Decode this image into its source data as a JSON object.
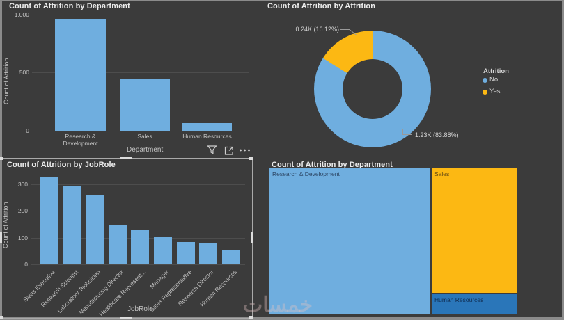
{
  "canvas": {
    "bg": "#3b3b3b",
    "frame": "#8b8b8b"
  },
  "colors": {
    "blue": "#6FAEDF",
    "yellow": "#FCB813",
    "dark_blue": "#2A76B9"
  },
  "toolbar": {
    "icons": [
      "filter",
      "focus-mode",
      "more-options"
    ]
  },
  "watermark": {
    "text": "خمسات"
  },
  "chart_data": [
    {
      "type": "bar",
      "title": "Count of Attrition by Department",
      "categories": [
        "Research & Development",
        "Sales",
        "Human Resources"
      ],
      "values": [
        961,
        446,
        63
      ],
      "xlabel": "Department",
      "ylabel": "Count of Attrition",
      "ylim": [
        0,
        1000
      ],
      "yticks": [
        "0",
        "500",
        "1,000"
      ],
      "bar_color": "#6FAEDF",
      "grid": true
    },
    {
      "type": "donut",
      "title": "Count of Attrition by Attrition",
      "legend_title": "Attrition",
      "legend_position": "right",
      "slices": [
        {
          "label": "No",
          "value": 1233,
          "pct": 83.88,
          "display": "1.23K (83.88%)",
          "color": "#6FAEDF"
        },
        {
          "label": "Yes",
          "value": 237,
          "pct": 16.12,
          "display": "0.24K (16.12%)",
          "color": "#FCB813"
        }
      ]
    },
    {
      "type": "bar",
      "title": "Count of Attrition by JobRole",
      "categories": [
        "Sales Executive",
        "Research Scientist",
        "Laboratory Technician",
        "Manufacturing Director",
        "Healthcare Represent...",
        "Manager",
        "Sales Representative",
        "Research Director",
        "Human Resources"
      ],
      "values": [
        326,
        292,
        259,
        145,
        131,
        102,
        83,
        80,
        52
      ],
      "xlabel": "JobRole",
      "ylabel": "Count of Attrition",
      "ylim": [
        0,
        350
      ],
      "yticks": [
        "0",
        "100",
        "200",
        "300"
      ],
      "bar_color": "#6FAEDF",
      "grid": true
    },
    {
      "type": "treemap",
      "title": "Count of Attrition by Department",
      "cells": [
        {
          "label": "Research & Development",
          "value": 961,
          "color": "#6FAEDF"
        },
        {
          "label": "Sales",
          "value": 446,
          "color": "#FCB813"
        },
        {
          "label": "Human Resources",
          "value": 63,
          "color": "#2A76B9"
        }
      ]
    }
  ]
}
